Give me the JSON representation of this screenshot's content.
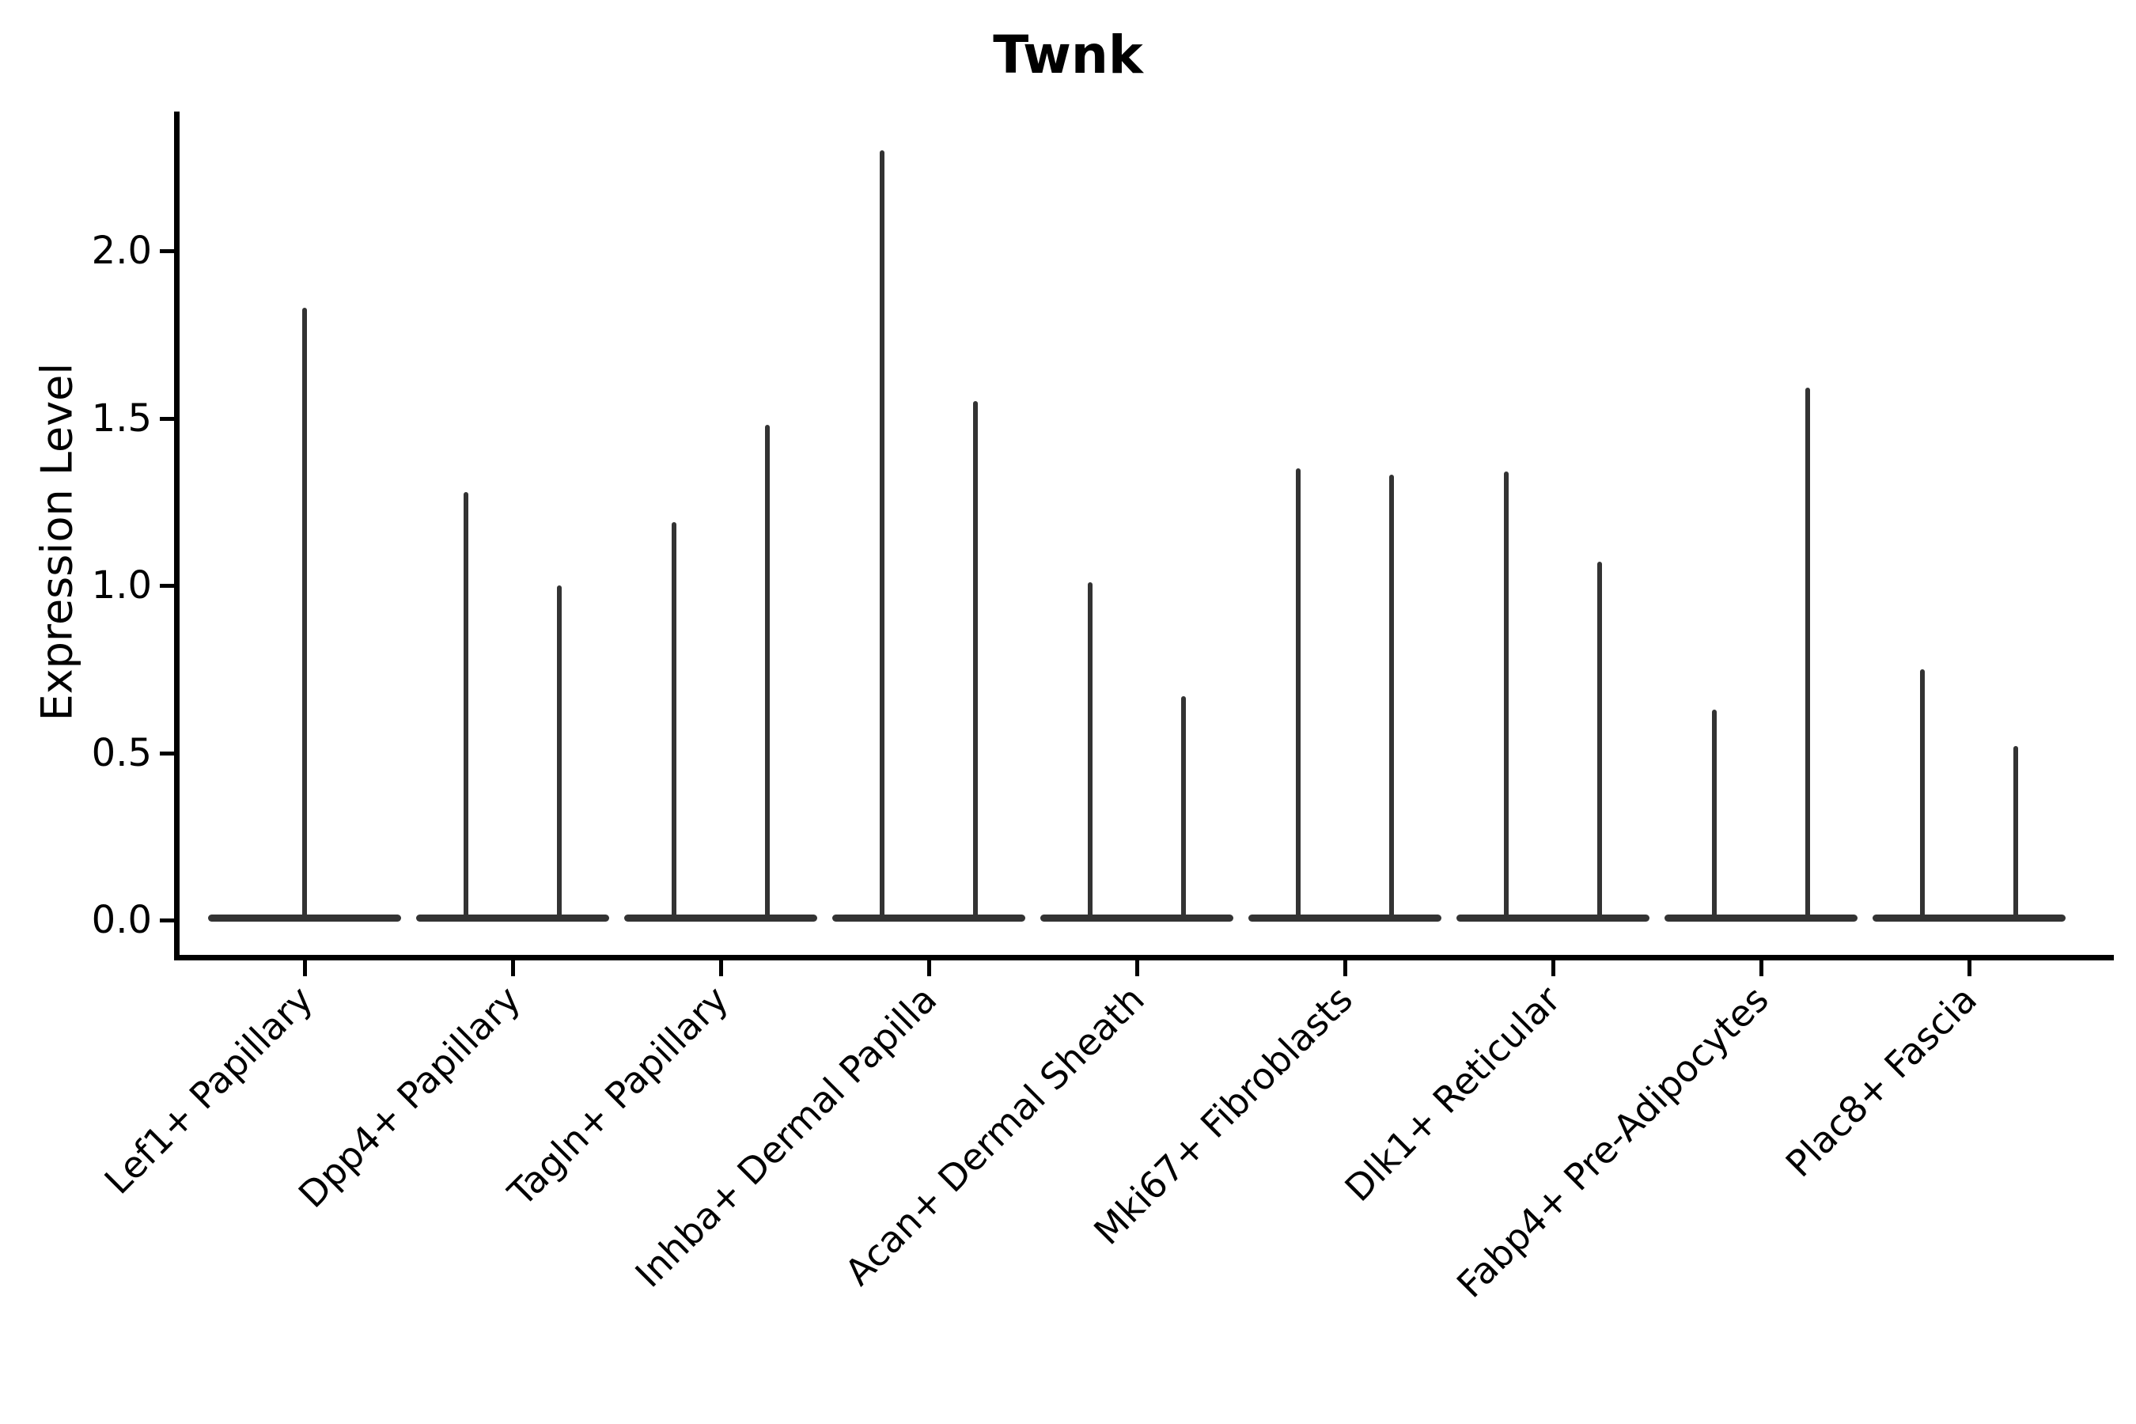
{
  "title": "Twnk",
  "y_axis": {
    "label": "Expression Level",
    "tick_labels": [
      "0.0",
      "0.5",
      "1.0",
      "1.5",
      "2.0"
    ]
  },
  "x_axis": {
    "tick_labels": [
      "Lef1+ Papillary",
      "Dpp4+ Papillary",
      "Tagln+ Papillary",
      "Inhba+ Dermal Papilla",
      "Acan+ Dermal Sheath",
      "Mki67+ Fibroblasts",
      "Dlk1+ Reticular",
      "Fabp4+ Pre-Adipocytes",
      "Plac8+ Fascia"
    ]
  },
  "colors": {
    "violin": "#333333",
    "axis": "#000000",
    "text": "#000000",
    "background": "#ffffff"
  },
  "chart_data": {
    "type": "violin",
    "title": "Twnk",
    "xlabel": "",
    "ylabel": "Expression Level",
    "yticks": [
      0.0,
      0.5,
      1.0,
      1.5,
      2.0
    ],
    "ylim": [
      -0.12,
      2.42
    ],
    "grid": false,
    "legend": null,
    "spines": [
      "left",
      "bottom"
    ],
    "categories": [
      "Lef1+ Papillary",
      "Dpp4+ Papillary",
      "Tagln+ Papillary",
      "Inhba+ Dermal Papilla",
      "Acan+ Dermal Sheath",
      "Mki67+ Fibroblasts",
      "Dlk1+ Reticular",
      "Fabp4+ Pre-Adipocytes",
      "Plac8+ Fascia"
    ],
    "description": "Violin plot of Twnk expression per fibroblast subtype. Expression mass is concentrated at 0 (wide flat base at y=0); each violin collapses to a thin vertical spike reaching the maximum expression value. Most categories show two violins side by side; the first category shows a single centered violin.",
    "series": [
      {
        "category": "Lef1+ Papillary",
        "violin_max": [
          1.83
        ]
      },
      {
        "category": "Dpp4+ Papillary",
        "violin_max": [
          1.28,
          1.0
        ]
      },
      {
        "category": "Tagln+ Papillary",
        "violin_max": [
          1.19,
          1.48
        ]
      },
      {
        "category": "Inhba+ Dermal Papilla",
        "violin_max": [
          2.3,
          1.55
        ]
      },
      {
        "category": "Acan+ Dermal Sheath",
        "violin_max": [
          1.01,
          0.67
        ]
      },
      {
        "category": "Mki67+ Fibroblasts",
        "violin_max": [
          1.35,
          1.33
        ]
      },
      {
        "category": "Dlk1+ Reticular",
        "violin_max": [
          1.34,
          1.07
        ]
      },
      {
        "category": "Fabp4+ Pre-Adipocytes",
        "violin_max": [
          0.63,
          1.59
        ]
      },
      {
        "category": "Plac8+ Fascia",
        "violin_max": [
          0.75,
          0.52
        ]
      }
    ],
    "violin_min": 0.0
  }
}
